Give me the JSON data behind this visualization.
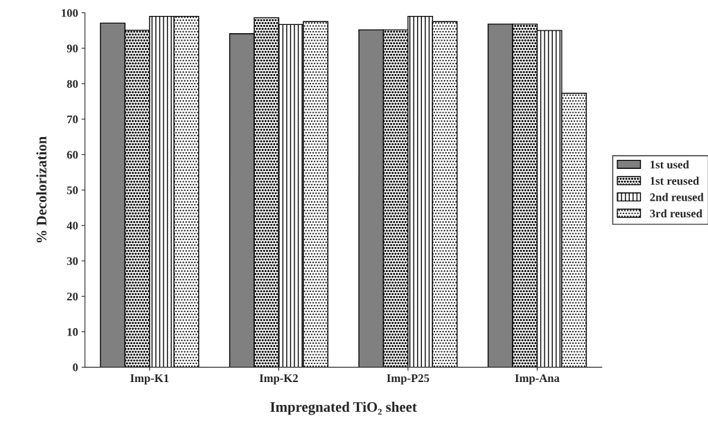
{
  "chart_data": {
    "type": "bar",
    "xlabel": "Impregnated TiO₂ sheet",
    "ylabel": "% Decolorization",
    "categories": [
      "Imp-K1",
      "Imp-K2",
      "Imp-P25",
      "Imp-Ana"
    ],
    "series": [
      {
        "name": "1st used",
        "color": "#808080",
        "values": [
          97.1,
          94.1,
          95.2,
          96.8
        ]
      },
      {
        "name": "1st reused",
        "color": "#000000",
        "values": [
          95.1,
          98.6,
          95.2,
          96.8
        ]
      },
      {
        "name": "2nd reused",
        "color": "#000000",
        "values": [
          99,
          96.7,
          99,
          95
        ]
      },
      {
        "name": "3rd reused",
        "color": "#000000",
        "values": [
          99,
          97.5,
          97.5,
          77.3
        ]
      }
    ],
    "ylim": [
      0,
      100
    ],
    "yticks": [
      0,
      10,
      20,
      30,
      40,
      50,
      60,
      70,
      80,
      90,
      100
    ],
    "grid": false,
    "legend": "right"
  }
}
